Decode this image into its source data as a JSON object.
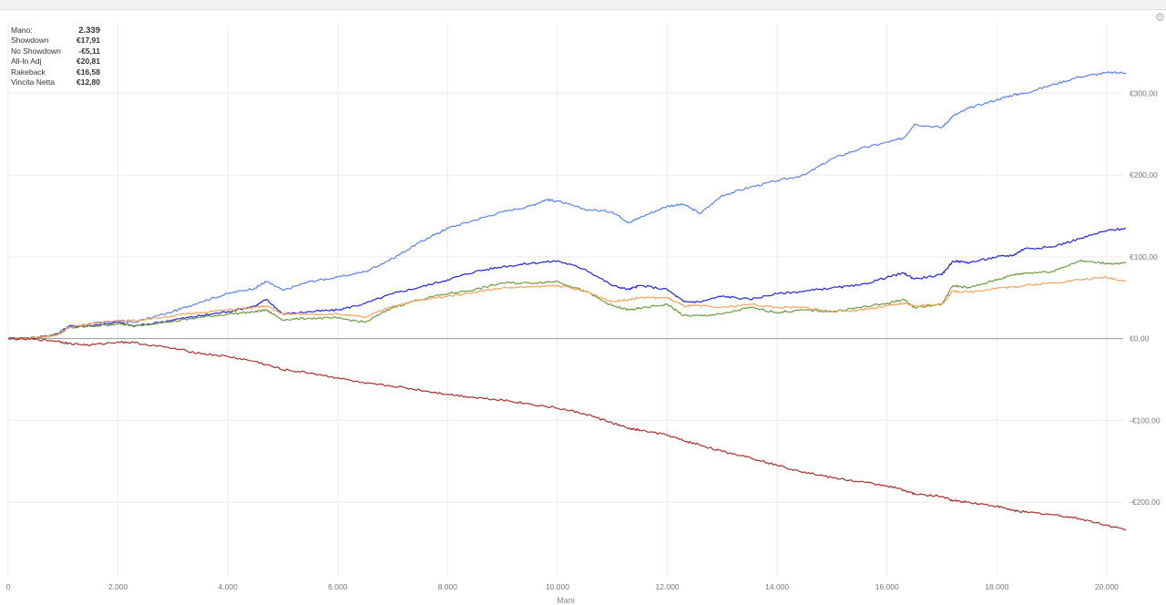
{
  "stats": [
    {
      "label": "Mano:",
      "value": "2.339"
    },
    {
      "label": "Showdown",
      "value": "€17,91"
    },
    {
      "label": "No Showdown",
      "value": "-€5,11"
    },
    {
      "label": "All-In Adj",
      "value": "€20,81"
    },
    {
      "label": "Rakeback",
      "value": "€16,58"
    },
    {
      "label": "Vincita Netta",
      "value": "€12,80"
    }
  ],
  "chart_data": {
    "type": "line",
    "xlabel": "Mani",
    "ylabel": "",
    "xlim": [
      0,
      20300
    ],
    "ylim": [
      -290,
      385
    ],
    "x_ticks": [
      0,
      2000,
      4000,
      6000,
      8000,
      10000,
      12000,
      14000,
      16000,
      18000,
      20000
    ],
    "x_tick_labels": [
      "0",
      "2.000",
      "4.000",
      "6.000",
      "8.000",
      "10.000",
      "12.000",
      "14.000",
      "16.000",
      "18.000",
      "20.000"
    ],
    "y_ticks": [
      -200,
      -100,
      0,
      100,
      200,
      300
    ],
    "y_tick_labels": [
      "-€200,00",
      "-€100,00",
      "€0,00",
      "€100,00",
      "€200,00",
      "€300,00"
    ],
    "grid": true,
    "series": [
      {
        "color": "#5b82f0",
        "x": [
          0,
          500,
          900,
          1100,
          1500,
          2000,
          2300,
          3000,
          3500,
          4000,
          4500,
          4700,
          5000,
          5500,
          6000,
          6500,
          7000,
          7500,
          7800,
          8000,
          8500,
          9000,
          9500,
          9800,
          10000,
          10500,
          11000,
          11300,
          11500,
          12000,
          12300,
          12600,
          13000,
          13500,
          14000,
          14500,
          15000,
          15500,
          16000,
          16300,
          16500,
          17000,
          17200,
          17500,
          18000,
          18300,
          18500,
          19000,
          19500,
          20000,
          20350
        ],
        "y": [
          0,
          1,
          5,
          14,
          18,
          22,
          20,
          33,
          45,
          55,
          62,
          70,
          59,
          70,
          75,
          82,
          98,
          118,
          128,
          135,
          145,
          155,
          162,
          170,
          168,
          158,
          155,
          142,
          148,
          162,
          164,
          153,
          175,
          185,
          193,
          200,
          220,
          232,
          240,
          245,
          262,
          258,
          272,
          282,
          292,
          298,
          300,
          310,
          320,
          325,
          325
        ]
      },
      {
        "color": "#2323dc",
        "x": [
          0,
          500,
          900,
          1100,
          1500,
          2000,
          2300,
          3000,
          3500,
          4000,
          4500,
          4700,
          5000,
          5500,
          6000,
          6500,
          7000,
          7500,
          8000,
          8500,
          9000,
          9500,
          10000,
          10500,
          11000,
          11300,
          11500,
          12000,
          12300,
          12600,
          13000,
          13500,
          14000,
          14500,
          15000,
          15500,
          16000,
          16300,
          16500,
          17000,
          17200,
          17500,
          18000,
          18300,
          18500,
          19000,
          19500,
          20000,
          20350
        ],
        "y": [
          0,
          1,
          6,
          15,
          16,
          20,
          15,
          23,
          28,
          33,
          40,
          48,
          30,
          33,
          35,
          43,
          55,
          63,
          72,
          82,
          88,
          92,
          95,
          85,
          65,
          60,
          65,
          60,
          45,
          45,
          52,
          48,
          55,
          58,
          62,
          65,
          75,
          80,
          73,
          78,
          95,
          93,
          100,
          102,
          110,
          112,
          122,
          132,
          135
        ]
      },
      {
        "color": "#6e9a3c",
        "x": [
          0,
          500,
          900,
          1100,
          1500,
          2000,
          2300,
          3000,
          3500,
          4000,
          4500,
          4700,
          5000,
          5500,
          6000,
          6500,
          7000,
          7500,
          8000,
          8500,
          9000,
          9500,
          10000,
          10500,
          11000,
          11300,
          11500,
          12000,
          12300,
          12600,
          13000,
          13500,
          14000,
          14500,
          15000,
          15500,
          16000,
          16300,
          16500,
          17000,
          17200,
          17500,
          18000,
          18300,
          18500,
          19000,
          19500,
          20000,
          20350
        ],
        "y": [
          0,
          1,
          5,
          13,
          15,
          18,
          16,
          21,
          26,
          30,
          33,
          35,
          23,
          25,
          25,
          20,
          38,
          48,
          55,
          60,
          68,
          68,
          70,
          58,
          40,
          35,
          37,
          42,
          28,
          28,
          30,
          38,
          32,
          35,
          33,
          38,
          43,
          48,
          38,
          42,
          65,
          62,
          72,
          78,
          80,
          82,
          95,
          92,
          92
        ]
      },
      {
        "color": "#f4a35c",
        "x": [
          0,
          500,
          900,
          1100,
          1500,
          2000,
          2300,
          3000,
          3500,
          4000,
          4500,
          4700,
          5000,
          5500,
          6000,
          6500,
          7000,
          7500,
          8000,
          8500,
          9000,
          9500,
          10000,
          10500,
          11000,
          11300,
          11500,
          12000,
          12300,
          12600,
          13000,
          13500,
          14000,
          14500,
          15000,
          15500,
          16000,
          16300,
          16500,
          17000,
          17200,
          17500,
          18000,
          18300,
          18500,
          19000,
          19500,
          20000,
          20350
        ],
        "y": [
          0,
          1,
          5,
          14,
          18,
          22,
          22,
          28,
          32,
          35,
          38,
          40,
          30,
          30,
          30,
          26,
          40,
          47,
          52,
          57,
          62,
          63,
          65,
          58,
          45,
          48,
          50,
          50,
          40,
          40,
          38,
          42,
          38,
          38,
          33,
          35,
          40,
          43,
          40,
          42,
          58,
          57,
          62,
          63,
          65,
          68,
          72,
          75,
          70
        ]
      },
      {
        "color": "#a8302c",
        "x": [
          0,
          500,
          900,
          1100,
          1500,
          2000,
          2300,
          3000,
          3500,
          4000,
          4500,
          5000,
          5500,
          6000,
          6500,
          7000,
          7500,
          8000,
          8500,
          9000,
          9500,
          10000,
          10500,
          11000,
          11300,
          11500,
          12000,
          12300,
          12600,
          13000,
          13500,
          14000,
          14500,
          15000,
          15500,
          16000,
          16300,
          16500,
          17000,
          17200,
          17500,
          18000,
          18300,
          18500,
          19000,
          19500,
          20000,
          20350
        ],
        "y": [
          0,
          -1,
          -3,
          -6,
          -8,
          -4,
          -5,
          -12,
          -18,
          -22,
          -28,
          -38,
          -42,
          -48,
          -55,
          -58,
          -63,
          -68,
          -72,
          -75,
          -80,
          -85,
          -92,
          -103,
          -110,
          -112,
          -118,
          -125,
          -130,
          -138,
          -145,
          -155,
          -163,
          -170,
          -175,
          -180,
          -185,
          -190,
          -193,
          -198,
          -200,
          -205,
          -210,
          -212,
          -215,
          -220,
          -228,
          -234
        ]
      }
    ]
  }
}
